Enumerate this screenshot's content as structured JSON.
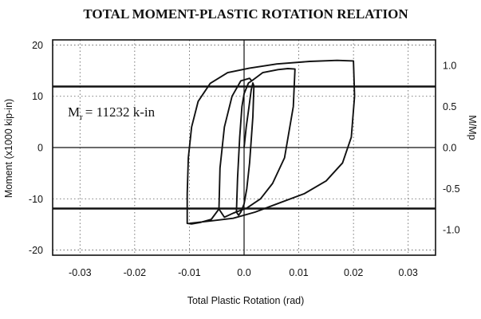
{
  "chart_data": {
    "type": "line",
    "title": "TOTAL MOMENT-PLASTIC ROTATION RELATION",
    "xlabel": "Total Plastic Rotation (rad)",
    "ylabel": "Moment (x1000 kip-in)",
    "y2label": "M/Mp",
    "xlim": [
      -0.035,
      0.035
    ],
    "ylim": [
      -21,
      21
    ],
    "y2lim": [
      -1.3125,
      1.3125
    ],
    "grid": true,
    "xticks": [
      -0.03,
      -0.02,
      -0.01,
      0.0,
      0.01,
      0.02,
      0.03
    ],
    "xtick_labels": [
      "-0.03",
      "-0.02",
      "-0.01",
      "0.0",
      "0.01",
      "0.02",
      "0.03"
    ],
    "yticks": [
      -20,
      -10,
      0,
      10,
      20
    ],
    "ytick_labels": [
      "-20",
      "-10",
      "0",
      "10",
      "20"
    ],
    "y2ticks": [
      -1.0,
      -0.5,
      0.0,
      0.5,
      1.0
    ],
    "y2tick_labels": [
      "-1.0",
      "-0.5",
      "0.0",
      "0.5",
      "1.0"
    ],
    "reference_lines": [
      {
        "y": 11.9
      },
      {
        "y": -11.9
      }
    ],
    "annotation": {
      "main": "M",
      "subscript": "r",
      "rest": "= 11232 k-in"
    },
    "series": [
      {
        "points": [
          [
            0.0,
            0.0
          ],
          [
            0.0004,
            4.0
          ],
          [
            0.0009,
            8.0
          ],
          [
            0.0013,
            11.2
          ],
          [
            0.0016,
            12.6
          ],
          [
            0.0018,
            12.0
          ],
          [
            0.0016,
            6.0
          ],
          [
            0.001,
            -3.0
          ],
          [
            0.0005,
            -8.0
          ],
          [
            0.0,
            -11.0
          ],
          [
            -0.0006,
            -12.6
          ],
          [
            -0.001,
            -13.2
          ],
          [
            -0.0014,
            -12.6
          ],
          [
            -0.0012,
            -6.0
          ],
          [
            -0.0008,
            2.0
          ],
          [
            -0.0004,
            8.0
          ],
          [
            0.0,
            10.5
          ],
          [
            0.0008,
            12.6
          ],
          [
            0.0014,
            13.0
          ]
        ]
      },
      {
        "points": [
          [
            0.0014,
            13.0
          ],
          [
            0.0034,
            14.6
          ],
          [
            0.0062,
            15.2
          ],
          [
            0.008,
            15.4
          ],
          [
            0.0093,
            15.3
          ],
          [
            0.009,
            8.0
          ],
          [
            0.0074,
            -2.0
          ],
          [
            0.0052,
            -7.0
          ],
          [
            0.003,
            -10.0
          ],
          [
            0.0005,
            -11.8
          ],
          [
            -0.002,
            -12.8
          ],
          [
            -0.0036,
            -13.6
          ],
          [
            -0.0046,
            -12.0
          ],
          [
            -0.0044,
            -4.0
          ],
          [
            -0.0036,
            4.0
          ],
          [
            -0.0022,
            10.0
          ],
          [
            -0.0006,
            13.0
          ],
          [
            0.001,
            13.5
          ],
          [
            0.0014,
            13.0
          ]
        ]
      },
      {
        "points": [
          [
            -0.0046,
            -12.0
          ],
          [
            -0.006,
            -14.0
          ],
          [
            -0.008,
            -14.6
          ],
          [
            -0.0096,
            -14.9
          ],
          [
            -0.0104,
            -14.8
          ],
          [
            -0.0104,
            -9.0
          ],
          [
            -0.0102,
            -2.0
          ],
          [
            -0.0096,
            4.0
          ],
          [
            -0.0084,
            9.0
          ],
          [
            -0.0062,
            12.5
          ],
          [
            -0.003,
            14.6
          ],
          [
            0.001,
            15.5
          ],
          [
            0.006,
            16.3
          ],
          [
            0.012,
            16.8
          ],
          [
            0.017,
            17.0
          ],
          [
            0.02,
            16.9
          ],
          [
            0.0202,
            10.0
          ],
          [
            0.0196,
            2.0
          ],
          [
            0.018,
            -3.0
          ],
          [
            0.015,
            -6.5
          ],
          [
            0.011,
            -9.0
          ],
          [
            0.006,
            -11.0
          ],
          [
            0.002,
            -12.6
          ],
          [
            -0.002,
            -13.8
          ],
          [
            -0.006,
            -14.3
          ],
          [
            -0.01,
            -14.8
          ]
        ]
      }
    ]
  }
}
